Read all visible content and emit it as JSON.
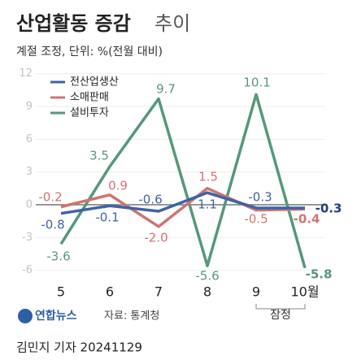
{
  "chart_data": {
    "type": "line",
    "title": "산업활동 증감",
    "title_light": "추이",
    "subtitle": "계절 조정, 단위: %(전월 대비)",
    "categories": [
      "5",
      "6",
      "7",
      "8",
      "9",
      "10월"
    ],
    "series": [
      {
        "name": "전산업생산",
        "color": "#3f63a6",
        "values": [
          -0.8,
          -0.1,
          -0.6,
          1.1,
          -0.3,
          -0.3
        ]
      },
      {
        "name": "소매판매",
        "color": "#cf7470",
        "values": [
          -0.2,
          0.9,
          -2.0,
          1.5,
          -0.5,
          -0.4
        ],
        "value_labels": [
          "-0.2",
          "0.9",
          "-2.0",
          "1.5",
          "-0.5",
          "-0.4"
        ]
      },
      {
        "name": "설비투자",
        "color": "#56987a",
        "values": [
          -3.6,
          3.5,
          9.7,
          -5.6,
          10.1,
          -5.8
        ]
      }
    ],
    "ylim": [
      -7,
      12.5
    ],
    "yticks": [
      -6,
      -3,
      0,
      3,
      6,
      9,
      12
    ],
    "grid": true,
    "legend": "top-left",
    "provisional": "잠정",
    "source_logo": "연합뉴스",
    "source": "자료: 통계청",
    "byline": "김민지 기자 20241129"
  }
}
